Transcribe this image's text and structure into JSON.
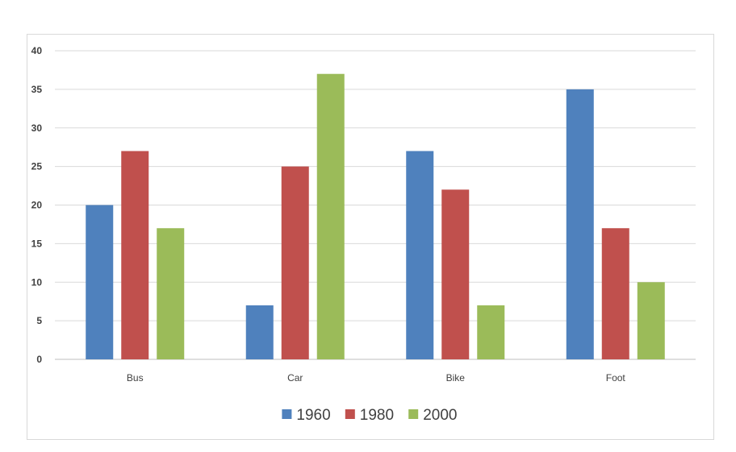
{
  "chart_data": {
    "type": "bar",
    "title": "",
    "xlabel": "",
    "ylabel": "",
    "categories": [
      "Bus",
      "Car",
      "Bike",
      "Foot"
    ],
    "series": [
      {
        "name": "1960",
        "color": "#4f81bd",
        "values": [
          20,
          7,
          27,
          35
        ]
      },
      {
        "name": "1980",
        "color": "#c0504d",
        "values": [
          27,
          25,
          22,
          17
        ]
      },
      {
        "name": "2000",
        "color": "#9bbb59",
        "values": [
          17,
          37,
          7,
          10
        ]
      }
    ],
    "ylim": [
      0,
      40
    ],
    "yticks": [
      "0",
      "5",
      "10",
      "15",
      "20",
      "25",
      "30",
      "35",
      "40"
    ],
    "grid": true,
    "legend_position": "bottom"
  }
}
